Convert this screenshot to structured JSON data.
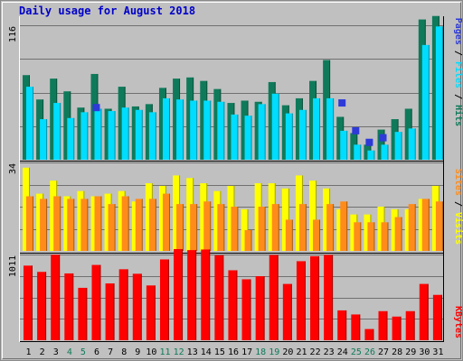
{
  "chart_data": {
    "type": "bar",
    "title": "Daily usage for August 2018",
    "categories": [
      "1",
      "2",
      "3",
      "4",
      "5",
      "6",
      "7",
      "8",
      "9",
      "10",
      "11",
      "12",
      "13",
      "14",
      "15",
      "16",
      "17",
      "18",
      "19",
      "20",
      "21",
      "22",
      "23",
      "24",
      "25",
      "26",
      "27",
      "28",
      "29",
      "30",
      "31"
    ],
    "weekend_days": [
      "4",
      "5",
      "11",
      "12",
      "18",
      "19",
      "25",
      "26"
    ],
    "panels": [
      {
        "axis_max_label": "116",
        "axis_max": 116,
        "series": [
          {
            "name": "Hits",
            "color": "#0f7a5a",
            "values": [
              73,
              52,
              70,
              59,
              45,
              74,
              44,
              63,
              46,
              48,
              62,
              70,
              71,
              68,
              61,
              49,
              51,
              50,
              67,
              47,
              53,
              68,
              86,
              37,
              23,
              13,
              26,
              35,
              44,
              121,
              124
            ]
          },
          {
            "name": "Files",
            "color": "#00ddff",
            "values": [
              63,
              35,
              49,
              36,
              41,
              44,
              42,
              45,
              43,
              41,
              53,
              52,
              51,
              51,
              50,
              39,
              38,
              48,
              57,
              40,
              43,
              53,
              53,
              25,
              13,
              8,
              13,
              24,
              27,
              99,
              115
            ]
          },
          {
            "name": "Pages",
            "color": "#2d3ad8",
            "values": [
              0,
              0,
              0,
              0,
              0,
              45,
              0,
              0,
              0,
              0,
              0,
              0,
              0,
              0,
              0,
              0,
              0,
              0,
              0,
              0,
              0,
              0,
              0,
              49,
              25,
              15,
              19,
              0,
              0,
              0,
              0
            ]
          }
        ]
      },
      {
        "axis_max_label": "34",
        "axis_max": 34,
        "series": [
          {
            "name": "Visits",
            "color": "#ffff00",
            "values": [
              32,
              22,
              27,
              21,
              23,
              21,
              22,
              23,
              19,
              26,
              25,
              29,
              28,
              26,
              23,
              25,
              16,
              26,
              26,
              24,
              29,
              27,
              24,
              16,
              14,
              14,
              17,
              16,
              16,
              20,
              25
            ]
          },
          {
            "name": "Sites",
            "color": "#ff8c1a",
            "values": [
              21,
              20,
              21,
              20,
              20,
              21,
              18,
              21,
              20,
              20,
              22,
              18,
              18,
              19,
              18,
              17,
              8,
              17,
              18,
              12,
              18,
              12,
              18,
              19,
              11,
              11,
              11,
              13,
              18,
              20,
              19
            ]
          }
        ]
      },
      {
        "axis_max_label": "1011",
        "axis_max": 1011,
        "series": [
          {
            "name": "KBytes",
            "color": "#ff0000",
            "values": [
              880,
              806,
              1008,
              788,
              618,
              888,
              670,
              837,
              784,
              646,
              953,
              1075,
              1063,
              1070,
              1002,
              825,
              719,
              755,
              1005,
              664,
              932,
              991,
              1006,
              352,
              304,
              132,
              343,
              279,
              343,
              664,
              535
            ]
          }
        ]
      }
    ],
    "legend": [
      {
        "label": "Hits",
        "color": "#0f7a5a"
      },
      {
        "label": "Files",
        "color": "#00ddff"
      },
      {
        "label": "Pages",
        "color": "#2d3ad8"
      },
      {
        "label": "Visits",
        "color": "#ffff00"
      },
      {
        "label": "Sites",
        "color": "#ff8c1a"
      },
      {
        "label": "KBytes",
        "color": "#ff0000"
      }
    ],
    "grid": true,
    "legend_placement": "right"
  },
  "colors": {
    "frame": "#c0c0c0",
    "title": "#0000c8",
    "weekday_label": "#000000",
    "weekend_label": "#0f7a5a",
    "separator": "#000000",
    "gridline": "#707070"
  }
}
